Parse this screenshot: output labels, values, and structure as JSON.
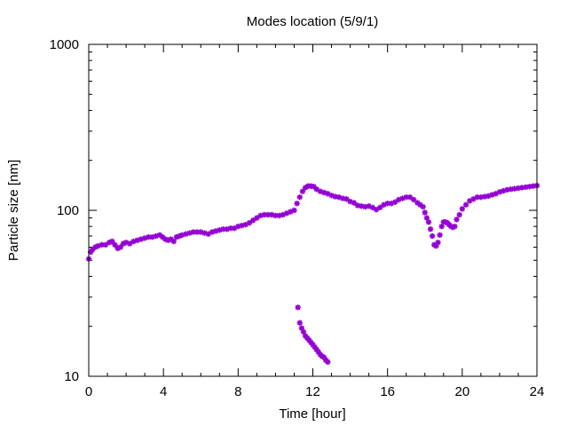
{
  "chart_data": {
    "type": "scatter",
    "title": "Modes location (5/9/1)",
    "xlabel": "Time [hour]",
    "ylabel": "Particle size [nm]",
    "xlim": [
      0,
      24
    ],
    "ylim": [
      10,
      1000
    ],
    "yscale": "log",
    "xticks": [
      0,
      4,
      8,
      12,
      16,
      20,
      24
    ],
    "xtick_labels": [
      "0",
      "4",
      "8",
      "12",
      "16",
      "20",
      "24"
    ],
    "yticks": [
      10,
      100,
      1000
    ],
    "ytick_labels": [
      "10",
      "100",
      "1000"
    ],
    "grid": false,
    "legend": "none",
    "marker_color": "#9400d3",
    "series": [
      {
        "values_xy": [
          [
            0.0,
            51
          ],
          [
            0.1,
            56
          ],
          [
            0.2,
            58
          ],
          [
            0.35,
            60
          ],
          [
            0.5,
            61
          ],
          [
            0.7,
            62
          ],
          [
            0.9,
            62
          ],
          [
            1.1,
            64
          ],
          [
            1.25,
            65
          ],
          [
            1.4,
            62
          ],
          [
            1.55,
            59
          ],
          [
            1.7,
            60
          ],
          [
            1.85,
            63
          ],
          [
            2.0,
            64
          ],
          [
            2.2,
            63
          ],
          [
            2.4,
            65
          ],
          [
            2.6,
            66
          ],
          [
            2.8,
            67
          ],
          [
            3.0,
            68
          ],
          [
            3.2,
            69
          ],
          [
            3.4,
            69
          ],
          [
            3.6,
            70
          ],
          [
            3.8,
            71
          ],
          [
            3.95,
            69
          ],
          [
            4.1,
            67
          ],
          [
            4.25,
            66
          ],
          [
            4.4,
            67
          ],
          [
            4.55,
            65
          ],
          [
            4.7,
            69
          ],
          [
            4.85,
            70
          ],
          [
            5.0,
            71
          ],
          [
            5.2,
            72
          ],
          [
            5.4,
            73
          ],
          [
            5.6,
            74
          ],
          [
            5.8,
            74
          ],
          [
            6.0,
            74
          ],
          [
            6.2,
            73
          ],
          [
            6.4,
            72
          ],
          [
            6.6,
            74
          ],
          [
            6.8,
            75
          ],
          [
            7.0,
            76
          ],
          [
            7.2,
            77
          ],
          [
            7.4,
            77
          ],
          [
            7.6,
            78
          ],
          [
            7.8,
            78
          ],
          [
            8.0,
            80
          ],
          [
            8.2,
            81
          ],
          [
            8.4,
            82
          ],
          [
            8.6,
            84
          ],
          [
            8.8,
            87
          ],
          [
            9.0,
            90
          ],
          [
            9.2,
            93
          ],
          [
            9.4,
            94
          ],
          [
            9.6,
            94
          ],
          [
            9.8,
            94
          ],
          [
            10.0,
            93
          ],
          [
            10.2,
            93
          ],
          [
            10.4,
            94
          ],
          [
            10.6,
            96
          ],
          [
            10.8,
            98
          ],
          [
            11.0,
            100
          ],
          [
            11.15,
            110
          ],
          [
            11.3,
            120
          ],
          [
            11.45,
            130
          ],
          [
            11.6,
            137
          ],
          [
            11.75,
            140
          ],
          [
            11.9,
            140
          ],
          [
            12.05,
            139
          ],
          [
            12.2,
            134
          ],
          [
            12.4,
            130
          ],
          [
            12.6,
            128
          ],
          [
            12.8,
            126
          ],
          [
            13.0,
            123
          ],
          [
            13.2,
            121
          ],
          [
            13.4,
            120
          ],
          [
            13.6,
            118
          ],
          [
            13.8,
            117
          ],
          [
            14.0,
            113
          ],
          [
            14.2,
            111
          ],
          [
            14.4,
            107
          ],
          [
            14.6,
            106
          ],
          [
            14.8,
            105
          ],
          [
            15.0,
            106
          ],
          [
            15.2,
            104
          ],
          [
            15.4,
            101
          ],
          [
            15.6,
            104
          ],
          [
            15.8,
            108
          ],
          [
            16.0,
            110
          ],
          [
            16.2,
            110
          ],
          [
            16.4,
            112
          ],
          [
            16.6,
            116
          ],
          [
            16.8,
            118
          ],
          [
            17.0,
            120
          ],
          [
            17.2,
            120
          ],
          [
            17.4,
            116
          ],
          [
            17.6,
            111
          ],
          [
            17.75,
            108
          ],
          [
            17.9,
            105
          ],
          [
            18.0,
            97
          ],
          [
            18.1,
            90
          ],
          [
            18.2,
            85
          ],
          [
            18.3,
            77
          ],
          [
            18.4,
            70
          ],
          [
            18.5,
            62
          ],
          [
            18.6,
            61
          ],
          [
            18.7,
            64
          ],
          [
            18.8,
            71
          ],
          [
            18.9,
            80
          ],
          [
            19.0,
            85
          ],
          [
            19.1,
            85
          ],
          [
            19.2,
            84
          ],
          [
            19.3,
            82
          ],
          [
            19.4,
            80
          ],
          [
            19.5,
            79
          ],
          [
            19.6,
            80
          ],
          [
            19.7,
            88
          ],
          [
            19.85,
            94
          ],
          [
            20.0,
            102
          ],
          [
            20.2,
            108
          ],
          [
            20.4,
            114
          ],
          [
            20.6,
            117
          ],
          [
            20.8,
            120
          ],
          [
            21.0,
            120
          ],
          [
            21.2,
            121
          ],
          [
            21.4,
            122
          ],
          [
            21.6,
            124
          ],
          [
            21.8,
            126
          ],
          [
            22.0,
            129
          ],
          [
            22.2,
            131
          ],
          [
            22.4,
            133
          ],
          [
            22.6,
            134
          ],
          [
            22.8,
            135
          ],
          [
            23.0,
            136
          ],
          [
            23.2,
            137
          ],
          [
            23.4,
            138
          ],
          [
            23.6,
            139
          ],
          [
            23.8,
            140
          ],
          [
            24.0,
            141
          ]
        ]
      },
      {
        "values_xy": [
          [
            11.2,
            26
          ],
          [
            11.3,
            21
          ],
          [
            11.4,
            19.5
          ],
          [
            11.5,
            18.5
          ],
          [
            11.6,
            17.5
          ],
          [
            11.7,
            17
          ],
          [
            11.8,
            16.5
          ],
          [
            11.9,
            16
          ],
          [
            12.0,
            15.5
          ],
          [
            12.1,
            15
          ],
          [
            12.2,
            14.5
          ],
          [
            12.3,
            14
          ],
          [
            12.4,
            13.5
          ],
          [
            12.5,
            13.2
          ],
          [
            12.6,
            13
          ],
          [
            12.7,
            12.5
          ],
          [
            12.8,
            12.2
          ]
        ]
      }
    ]
  }
}
